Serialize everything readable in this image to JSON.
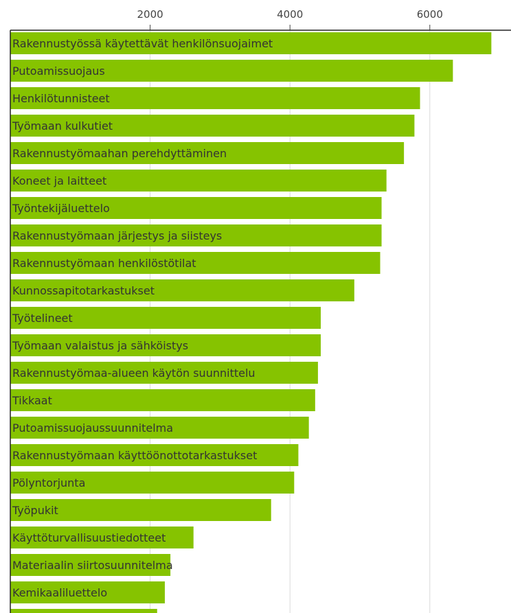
{
  "chart_data": {
    "type": "bar",
    "orientation": "horizontal",
    "bar_color": "#86c300",
    "grid": true,
    "x_ticks": [
      2000,
      4000,
      6000
    ],
    "xlim": [
      0,
      7150
    ],
    "categories": [
      "Rakennustyössä käytettävät henkilönsuojaimet",
      "Putoamissuojaus",
      "Henkilötunnisteet",
      "Työmaan kulkutiet",
      "Rakennustyömaahan perehdyttäminen",
      "Koneet ja laitteet",
      "Työntekijäluettelo",
      "Rakennustyömaan järjestys ja siisteys",
      "Rakennustyömaan henkilöstötilat",
      "Kunnossapitotarkastukset",
      "Työtelineet",
      "Työmaan valaistus ja sähköistys",
      "Rakennustyömaa-alueen käytön suunnittelu",
      "Tikkaat",
      "Putoamissuojaussuunnitelma",
      "Rakennustyömaan käyttöönottotarkastukset",
      "Pölyntorjunta",
      "Työpukit",
      "Käyttöturvallisuustiedotteet",
      "Materiaalin siirtosuunnitelma",
      "Kemikaaliluettelo",
      ""
    ],
    "values": [
      6880,
      6330,
      5860,
      5780,
      5630,
      5380,
      5310,
      5310,
      5290,
      4920,
      4440,
      4440,
      4400,
      4360,
      4270,
      4120,
      4060,
      3730,
      2620,
      2290,
      2210,
      2100
    ]
  }
}
